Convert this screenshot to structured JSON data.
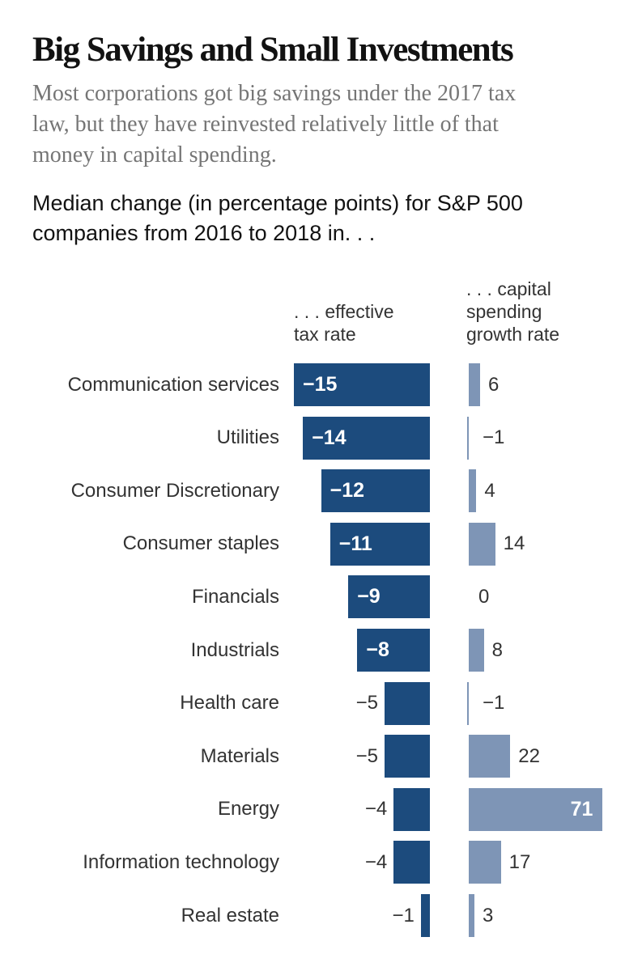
{
  "header": {
    "title": "Big Savings and Small Investments",
    "subtitle": "Most corporations got big savings under the 2017 tax\nlaw, but they have reinvested relatively little of that\nmoney in capital spending.",
    "note": "Median change (in percentage points) for S&P 500\ncompanies from 2016 to 2018 in. . ."
  },
  "columns": {
    "tax_header": ". . . effective\ntax rate",
    "capital_header": ". . . capital\nspending\ngrowth rate"
  },
  "colors": {
    "tax_bar": "#1c4b7d",
    "capital_bar": "#7e95b6",
    "inside_label": "#ffffff",
    "outside_label": "#333333",
    "title_text": "#121212",
    "subtitle_text": "#757575"
  },
  "chart_data": {
    "type": "bar",
    "orientation": "horizontal",
    "title": "Big Savings and Small Investments",
    "subtitle": "Most corporations got big savings under the 2017 tax law, but they have reinvested relatively little of that money in capital spending.",
    "note": "Median change (in percentage points) for S&P 500 companies from 2016 to 2018 in. . .",
    "units": "percentage points",
    "grid": false,
    "legend_position": "column-headers",
    "categories": [
      "Communication services",
      "Utilities",
      "Consumer Discretionary",
      "Consumer staples",
      "Financials",
      "Industrials",
      "Health care",
      "Materials",
      "Energy",
      "Information technology",
      "Real estate"
    ],
    "series": [
      {
        "name": ". . . effective tax rate",
        "values": [
          -15,
          -14,
          -12,
          -11,
          -9,
          -8,
          -5,
          -5,
          -4,
          -4,
          -1
        ],
        "color": "#1c4b7d",
        "direction": "left",
        "inside_label_min_abs": 8
      },
      {
        "name": ". . . capital spending growth rate",
        "values": [
          6,
          -1,
          4,
          14,
          0,
          8,
          -1,
          22,
          71,
          17,
          3
        ],
        "color": "#7e95b6",
        "direction": "right",
        "inside_label_min_abs": 70
      }
    ]
  }
}
